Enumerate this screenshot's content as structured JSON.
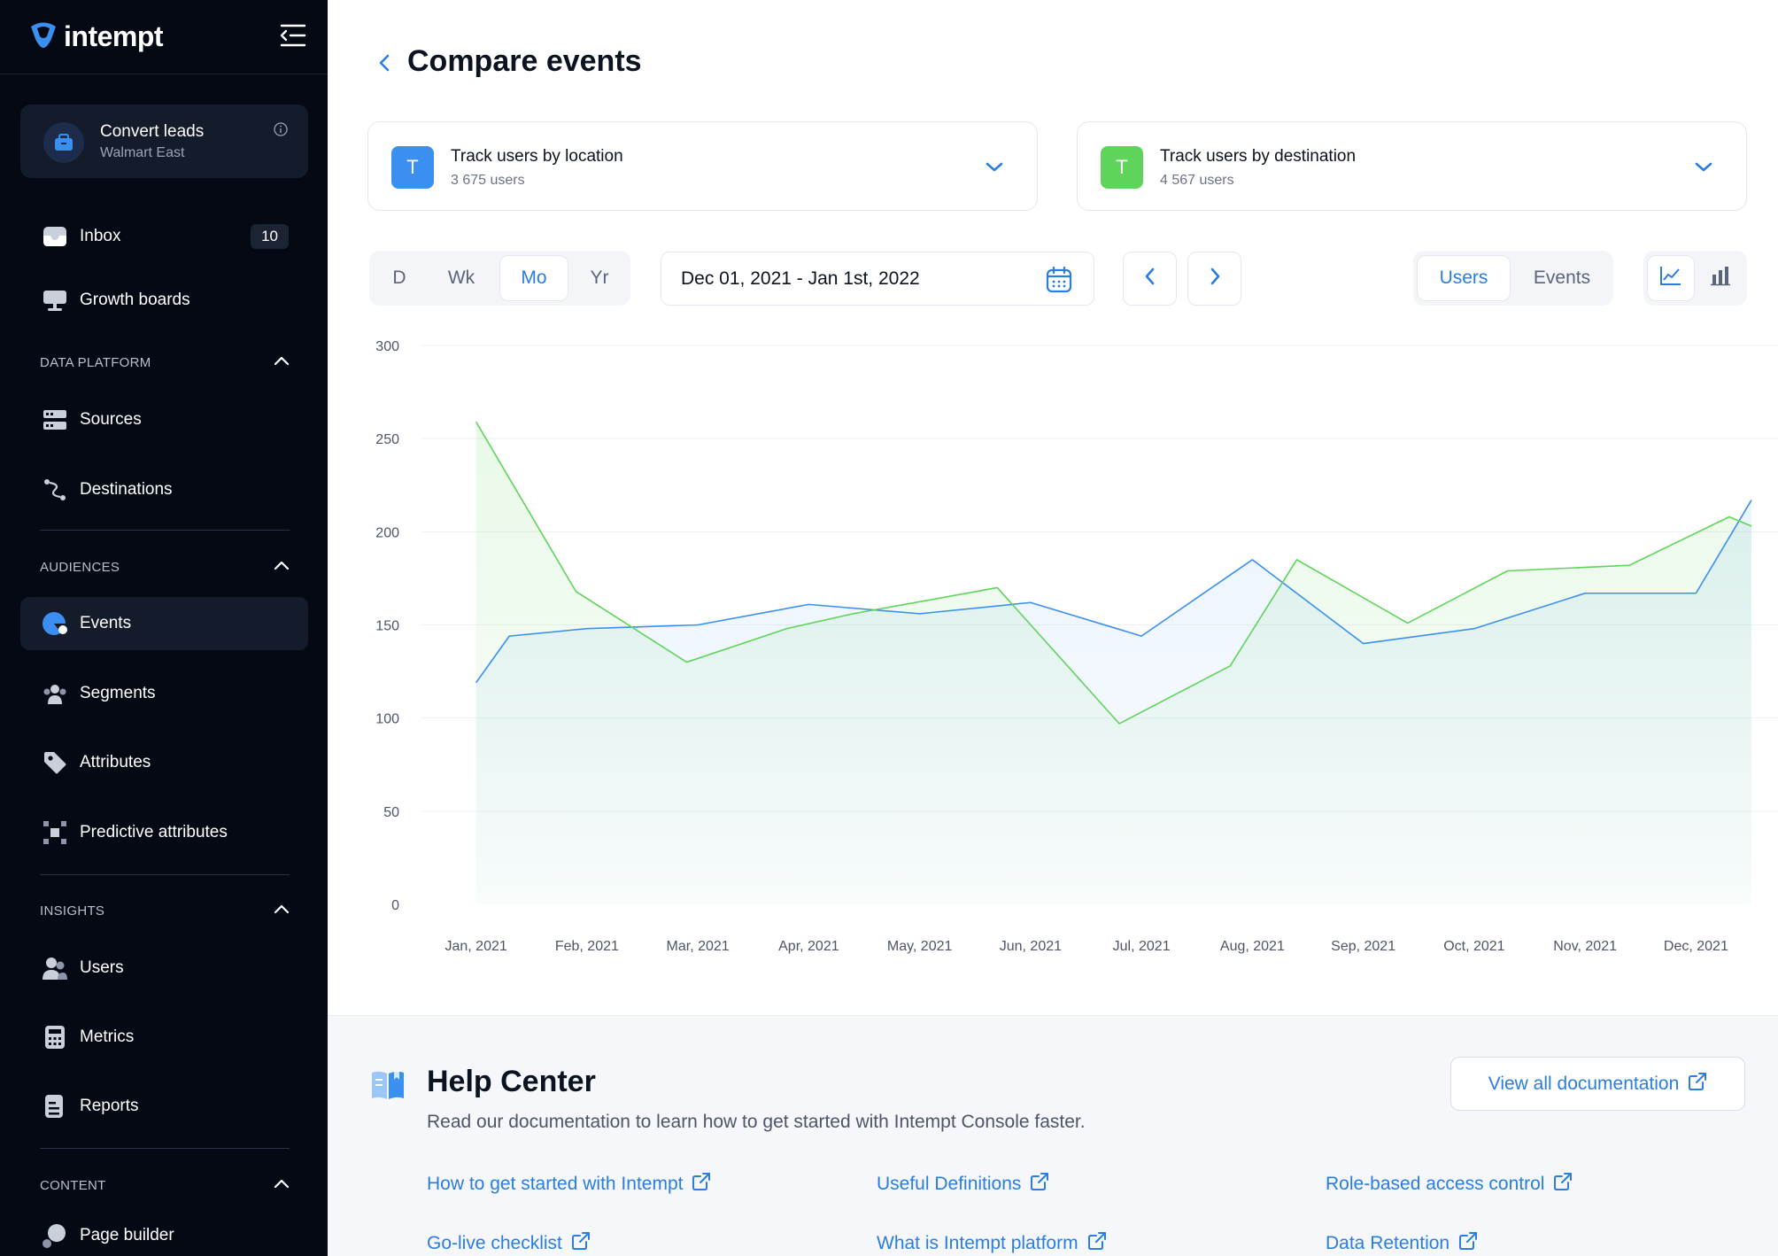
{
  "brand": {
    "name": "intempt",
    "accent": "#2a7de1"
  },
  "sidebar": {
    "project": {
      "title": "Convert leads",
      "subtitle": "Walmart East"
    },
    "inbox": {
      "label": "Inbox",
      "badge": "10"
    },
    "growth_boards": {
      "label": "Growth boards"
    },
    "sections": {
      "data_platform": {
        "label": "DATA PLATFORM",
        "items": [
          {
            "label": "Sources",
            "icon": "sources-icon"
          },
          {
            "label": "Destinations",
            "icon": "destinations-icon"
          }
        ]
      },
      "audiences": {
        "label": "AUDIENCES",
        "items": [
          {
            "label": "Events",
            "icon": "events-icon",
            "active": true
          },
          {
            "label": "Segments",
            "icon": "segments-icon"
          },
          {
            "label": "Attributes",
            "icon": "attributes-icon"
          },
          {
            "label": "Predictive attributes",
            "icon": "predictive-attributes-icon"
          }
        ]
      },
      "insights": {
        "label": "INSIGHTS",
        "items": [
          {
            "label": "Users",
            "icon": "users-icon"
          },
          {
            "label": "Metrics",
            "icon": "metrics-icon"
          },
          {
            "label": "Reports",
            "icon": "reports-icon"
          }
        ]
      },
      "content": {
        "label": "CONTENT",
        "items": [
          {
            "label": "Page builder",
            "icon": "page-builder-icon"
          }
        ]
      }
    }
  },
  "main": {
    "title": "Compare events",
    "event_a": {
      "badge": "T",
      "title": "Track users by location",
      "subtitle": "3 675 users",
      "color": "#3b8ff0"
    },
    "event_b": {
      "badge": "T",
      "title": "Track users by destination",
      "subtitle": "4 567 users",
      "color": "#5fd45a"
    },
    "periods": {
      "d": "D",
      "wk": "Wk",
      "mo": "Mo",
      "yr": "Yr",
      "selected": "Mo"
    },
    "date_range": "Dec 01, 2021 - Jan 1st, 2022",
    "metric_toggle": {
      "users": "Users",
      "events": "Events",
      "selected": "Users"
    },
    "chart_type_selected": "line"
  },
  "chart_data": {
    "type": "line",
    "categories": [
      "Jan, 2021",
      "Feb, 2021",
      "Mar, 2021",
      "Apr, 2021",
      "May, 2021",
      "Jun, 2021",
      "Jul, 2021",
      "Aug, 2021",
      "Sep, 2021",
      "Oct, 2021",
      "Nov, 2021",
      "Dec, 2021"
    ],
    "ylim": [
      0,
      300
    ],
    "yticks": [
      0,
      50,
      100,
      150,
      200,
      250,
      300
    ],
    "grid": true,
    "series": [
      {
        "color": "#3b8ff0",
        "x": [
          0,
          0.3,
          1,
          2,
          3,
          4,
          5,
          6,
          7,
          8,
          9,
          10,
          11,
          11.5
        ],
        "values": [
          119,
          144,
          148,
          150,
          161,
          156,
          162,
          144,
          185,
          140,
          148,
          167,
          167,
          217
        ]
      },
      {
        "color": "#5fd45a",
        "x": [
          0,
          0.9,
          1.9,
          2.8,
          3.4,
          4.7,
          5.8,
          6.8,
          7.4,
          8.4,
          9.3,
          10.4,
          11.3,
          11.5
        ],
        "values": [
          259,
          168,
          130,
          148,
          156,
          170,
          97,
          128,
          185,
          151,
          179,
          182,
          208,
          203
        ]
      }
    ]
  },
  "help": {
    "title": "Help Center",
    "description": "Read our documentation to learn how to get started with Intempt Console faster.",
    "view_all": "View all documentation",
    "links": [
      "How to get started with Intempt",
      "Useful Definitions",
      "Role-based access control",
      "Go-live checklist",
      "What is Intempt platform",
      "Data Retention"
    ]
  }
}
